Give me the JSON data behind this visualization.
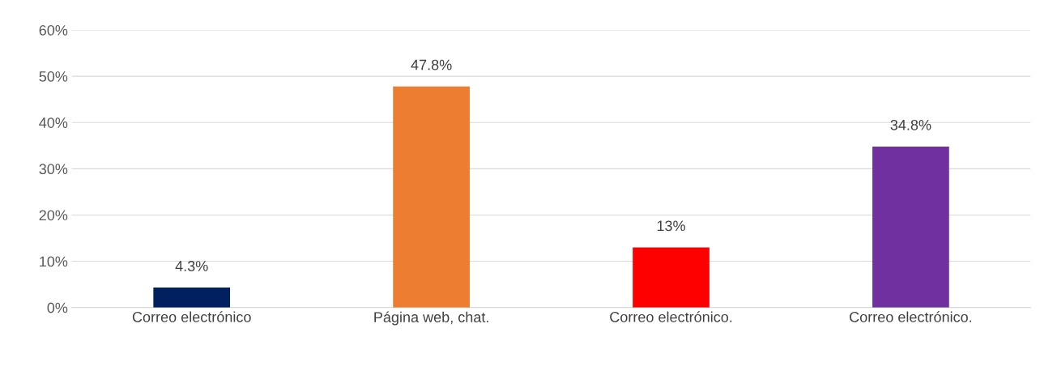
{
  "chart_data": {
    "type": "bar",
    "categories": [
      "Correo electrónico",
      "Página web, chat.",
      "Correo electrónico.",
      "Correo electrónico."
    ],
    "values": [
      4.3,
      47.8,
      13,
      34.8
    ],
    "colors": [
      "#002060",
      "#ed7d31",
      "#ff0000",
      "#7030a0"
    ],
    "value_labels": [
      "4.3%",
      "47.8%",
      "13%",
      "34.8%"
    ],
    "ylim": [
      0,
      60
    ],
    "yticks": [
      {
        "value": 0,
        "label": "0%"
      },
      {
        "value": 10,
        "label": "10%"
      },
      {
        "value": 20,
        "label": "20%"
      },
      {
        "value": 30,
        "label": "30%"
      },
      {
        "value": 40,
        "label": "40%"
      },
      {
        "value": 50,
        "label": "50%"
      },
      {
        "value": 60,
        "label": "60%"
      }
    ],
    "grid": "y",
    "legend": false
  }
}
